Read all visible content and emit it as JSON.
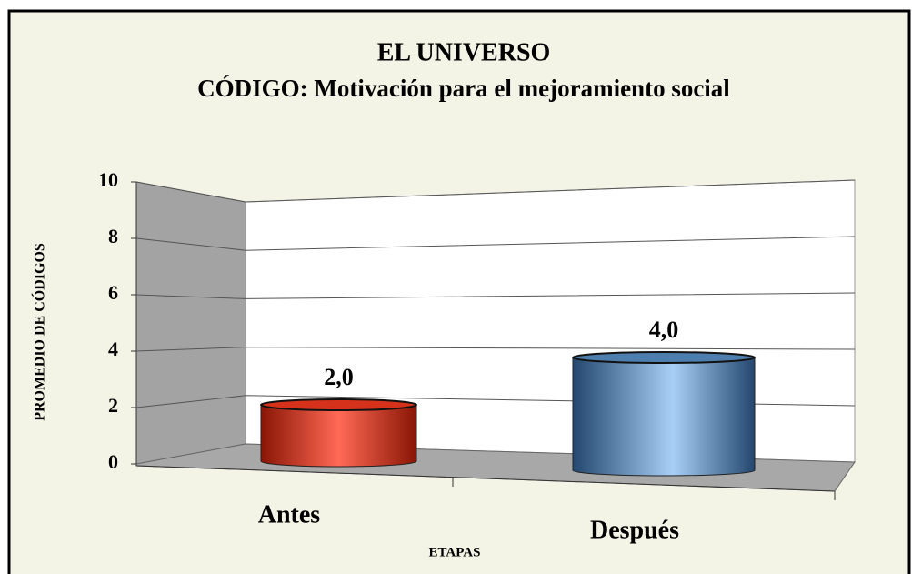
{
  "chart_data": {
    "type": "bar",
    "title": "EL UNIVERSO",
    "subtitle": "CÓDIGO: Motivación para el mejoramiento social",
    "categories": [
      "Antes",
      "Después"
    ],
    "values": [
      2,
      4
    ],
    "value_labels": [
      "2,0",
      "4,0"
    ],
    "colors": [
      "#d6311a",
      "#4d7eae"
    ],
    "ylabel": "PROMEDIO DE CÓDIGOS",
    "xlabel": "ETAPAS",
    "ylim": [
      0,
      10
    ],
    "yticks": [
      0,
      2,
      4,
      6,
      8,
      10
    ],
    "grid": true
  }
}
